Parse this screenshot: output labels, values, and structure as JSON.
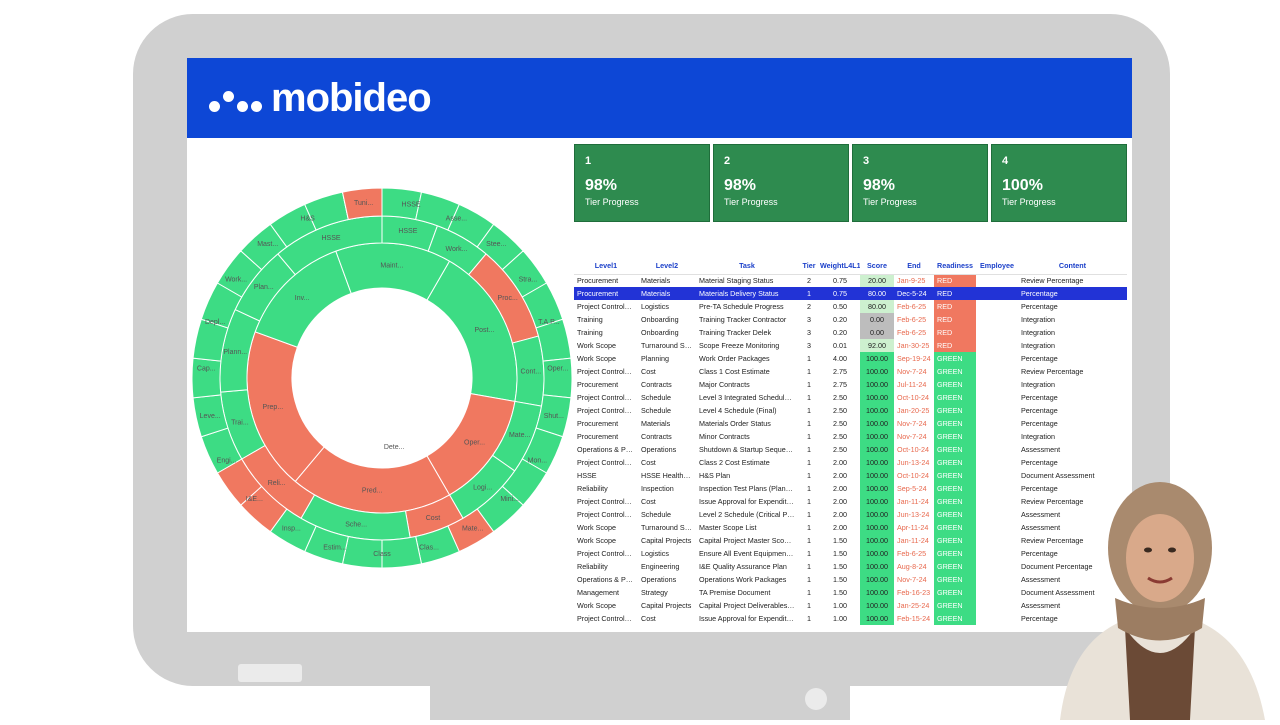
{
  "brand": {
    "name": "mobideo"
  },
  "tiles": [
    {
      "num": "1",
      "pct": "98%",
      "label": "Tier Progress"
    },
    {
      "num": "2",
      "pct": "98%",
      "label": "Tier Progress"
    },
    {
      "num": "3",
      "pct": "98%",
      "label": "Tier Progress"
    },
    {
      "num": "4",
      "pct": "100%",
      "label": "Tier Progress"
    }
  ],
  "table": {
    "headers": [
      "Level1",
      "Level2",
      "Task",
      "Tier",
      "WeightL4L1",
      "Score",
      "End",
      "Readiness",
      "Employee",
      "Content"
    ],
    "rows": [
      [
        "Procurement",
        "Materials",
        "Material Staging Status",
        "2",
        "0.75",
        "20.00",
        "Jan-9-25",
        "RED",
        "",
        "Review Percentage"
      ],
      [
        "Procurement",
        "Materials",
        "Materials Delivery Status",
        "1",
        "0.75",
        "80.00",
        "Dec-5-24",
        "RED",
        "",
        "Percentage"
      ],
      [
        "Project Controls ...",
        "Logistics",
        "Pre-TA Schedule Progress",
        "2",
        "0.50",
        "80.00",
        "Feb-6-25",
        "RED",
        "",
        "Percentage"
      ],
      [
        "Training",
        "Onboarding",
        "Training Tracker Contractor",
        "3",
        "0.20",
        "0.00",
        "Feb-6-25",
        "RED",
        "",
        "Integration"
      ],
      [
        "Training",
        "Onboarding",
        "Training Tracker Delek",
        "3",
        "0.20",
        "0.00",
        "Feb-6-25",
        "RED",
        "",
        "Integration"
      ],
      [
        "Work Scope",
        "Turnaround Sc...",
        "Scope Freeze Monitoring",
        "3",
        "0.01",
        "92.00",
        "Jan-30-25",
        "RED",
        "",
        "Integration"
      ],
      [
        "Work Scope",
        "Planning",
        "Work Order Packages",
        "1",
        "4.00",
        "100.00",
        "Sep-19-24",
        "GREEN",
        "",
        "Percentage"
      ],
      [
        "Project Controls ...",
        "Cost",
        "Class 1 Cost Estimate",
        "1",
        "2.75",
        "100.00",
        "Nov-7-24",
        "GREEN",
        "",
        "Review Percentage"
      ],
      [
        "Procurement",
        "Contracts",
        "Major Contracts",
        "1",
        "2.75",
        "100.00",
        "Jul-11-24",
        "GREEN",
        "",
        "Integration"
      ],
      [
        "Project Controls ...",
        "Schedule",
        "Level 3 Integrated Schedule (De...",
        "1",
        "2.50",
        "100.00",
        "Oct-10-24",
        "GREEN",
        "",
        "Percentage"
      ],
      [
        "Project Controls ...",
        "Schedule",
        "Level 4 Schedule (Final)",
        "1",
        "2.50",
        "100.00",
        "Jan-20-25",
        "GREEN",
        "",
        "Percentage"
      ],
      [
        "Procurement",
        "Materials",
        "Materials Order Status",
        "1",
        "2.50",
        "100.00",
        "Nov-7-24",
        "GREEN",
        "",
        "Percentage"
      ],
      [
        "Procurement",
        "Contracts",
        "Minor Contracts",
        "1",
        "2.50",
        "100.00",
        "Nov-7-24",
        "GREEN",
        "",
        "Integration"
      ],
      [
        "Operations & Pro...",
        "Operations",
        "Shutdown & Startup Sequence",
        "1",
        "2.50",
        "100.00",
        "Oct-10-24",
        "GREEN",
        "",
        "Assessment"
      ],
      [
        "Project Controls ...",
        "Cost",
        "Class 2 Cost Estimate",
        "1",
        "2.00",
        "100.00",
        "Jun-13-24",
        "GREEN",
        "",
        "Percentage"
      ],
      [
        "HSSE",
        "HSSE Health&...",
        "H&S Plan",
        "1",
        "2.00",
        "100.00",
        "Oct-10-24",
        "GREEN",
        "",
        "Document Assessment"
      ],
      [
        "Reliability",
        "Inspection",
        "Inspection Test Plans (Planning...",
        "1",
        "2.00",
        "100.00",
        "Sep-5-24",
        "GREEN",
        "",
        "Percentage"
      ],
      [
        "Project Controls ...",
        "Cost",
        "Issue Approval for Expenditure ...",
        "1",
        "2.00",
        "100.00",
        "Jan-11-24",
        "GREEN",
        "",
        "Review Percentage"
      ],
      [
        "Project Controls ...",
        "Schedule",
        "Level 2 Schedule (Critical Path)",
        "1",
        "2.00",
        "100.00",
        "Jun-13-24",
        "GREEN",
        "",
        "Assessment"
      ],
      [
        "Work Scope",
        "Turnaround Sc...",
        "Master Scope List",
        "1",
        "2.00",
        "100.00",
        "Apr-11-24",
        "GREEN",
        "",
        "Assessment"
      ],
      [
        "Work Scope",
        "Capital Projects",
        "Capital Project Master Scope List",
        "1",
        "1.50",
        "100.00",
        "Jan-11-24",
        "GREEN",
        "",
        "Review Percentage"
      ],
      [
        "Project Controls ...",
        "Logistics",
        "Ensure All Event Equipment Ons...",
        "1",
        "1.50",
        "100.00",
        "Feb-6-25",
        "GREEN",
        "",
        "Percentage"
      ],
      [
        "Reliability",
        "Engineering",
        "I&E Quality Assurance Plan",
        "1",
        "1.50",
        "100.00",
        "Aug-8-24",
        "GREEN",
        "",
        "Document Percentage"
      ],
      [
        "Operations & Pro...",
        "Operations",
        "Operations Work Packages",
        "1",
        "1.50",
        "100.00",
        "Nov-7-24",
        "GREEN",
        "",
        "Assessment"
      ],
      [
        "Management",
        "Strategy",
        "TA Premise Document",
        "1",
        "1.50",
        "100.00",
        "Feb-16-23",
        "GREEN",
        "",
        "Document Assessment"
      ],
      [
        "Work Scope",
        "Capital Projects",
        "Capital Project Deliverables Sch...",
        "1",
        "1.00",
        "100.00",
        "Jan-25-24",
        "GREEN",
        "",
        "Assessment"
      ],
      [
        "Project Controls ...",
        "Cost",
        "Issue Approval for Expenditure ...",
        "1",
        "1.00",
        "100.00",
        "Feb-15-24",
        "GREEN",
        "",
        "Percentage"
      ]
    ]
  },
  "colors": {
    "brand_blue": "#0d47d6",
    "tile_green": "#2e8b4f",
    "red": "#f07860",
    "green": "#3ddc84",
    "score_gray": "#bdbdbd",
    "score_light": "#cdf0cf",
    "date_red": "#e8694e",
    "selected_row": "#2233d6"
  },
  "sunburst": {
    "inner_labels": [
      "Dete..."
    ],
    "ring2_labels": [
      "Post...",
      "Oper...",
      "Pred...",
      "Prep...",
      "Inv...",
      "Maint..."
    ],
    "ring3_labels": [
      "HSSE",
      "Work...",
      "Proc...",
      "Cont...",
      "Mate...",
      "Logi...",
      "Cost",
      "Sche...",
      "Reli...",
      "Trai...",
      "Plann...",
      "Plan..."
    ],
    "ring4_labels": [
      "Tuni...",
      "HSSE",
      "Asse...",
      "Stee...",
      "Stra...",
      "T.A.P...",
      "Oper...",
      "Shut...",
      "Mon...",
      "Mini...",
      "Mate...",
      "Clas...",
      "Class",
      "Estim...",
      "Insp...",
      "I&E...",
      "Engi...",
      "Leve...",
      "Cap...",
      "Depl...",
      "Work...",
      "Mast...",
      "H&S"
    ]
  }
}
